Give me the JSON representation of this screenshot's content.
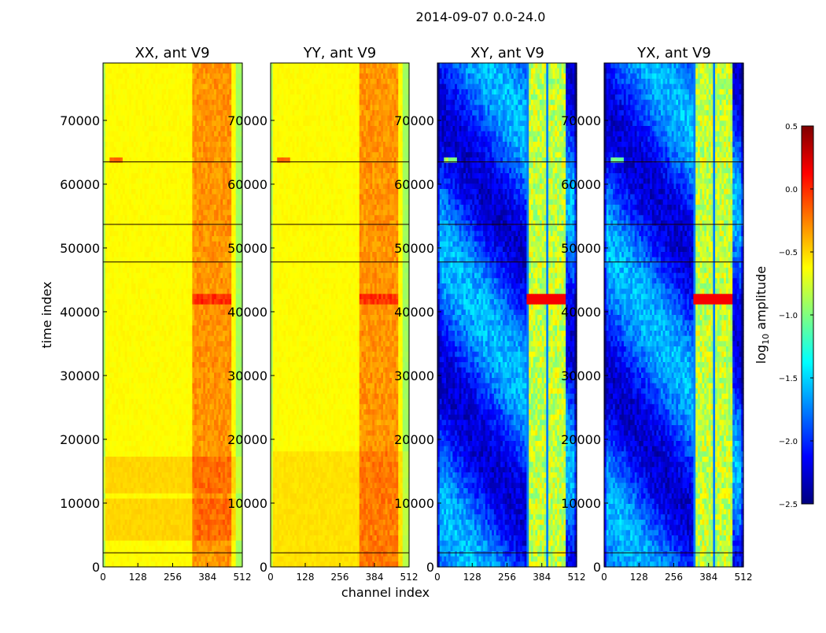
{
  "chart_data": {
    "type": "heatmap",
    "suptitle": "2014-09-07 0.0-24.0",
    "xlabel": "channel index",
    "ylabel": "time index",
    "xlim": [
      0,
      512
    ],
    "ylim": [
      0,
      79000
    ],
    "x_ticks": [
      "0",
      "128",
      "256",
      "384",
      "512"
    ],
    "y_ticks": [
      "0",
      "10000",
      "20000",
      "30000",
      "40000",
      "50000",
      "60000",
      "70000"
    ],
    "panels": [
      {
        "title": "XX, ant V9",
        "kind": "auto"
      },
      {
        "title": "YY, ant V9",
        "kind": "auto"
      },
      {
        "title": "XY, ant V9",
        "kind": "cross"
      },
      {
        "title": "YX, ant V9",
        "kind": "cross"
      }
    ],
    "colorbar": {
      "label_base": "log",
      "label_sub": "10",
      "label_rest": " amplitude",
      "range": [
        -2.5,
        0.5
      ],
      "ticks": [
        "0.5",
        "0.0",
        "−0.5",
        "−1.0",
        "−1.5",
        "−2.0",
        "−2.5"
      ],
      "colormap": "jet"
    },
    "features": {
      "rfi_channel_band": [
        330,
        470
      ],
      "bright_event_time": 63800,
      "flagged_times": [
        63500,
        53700,
        47800,
        2200
      ],
      "strong_event_time": 42000
    }
  }
}
